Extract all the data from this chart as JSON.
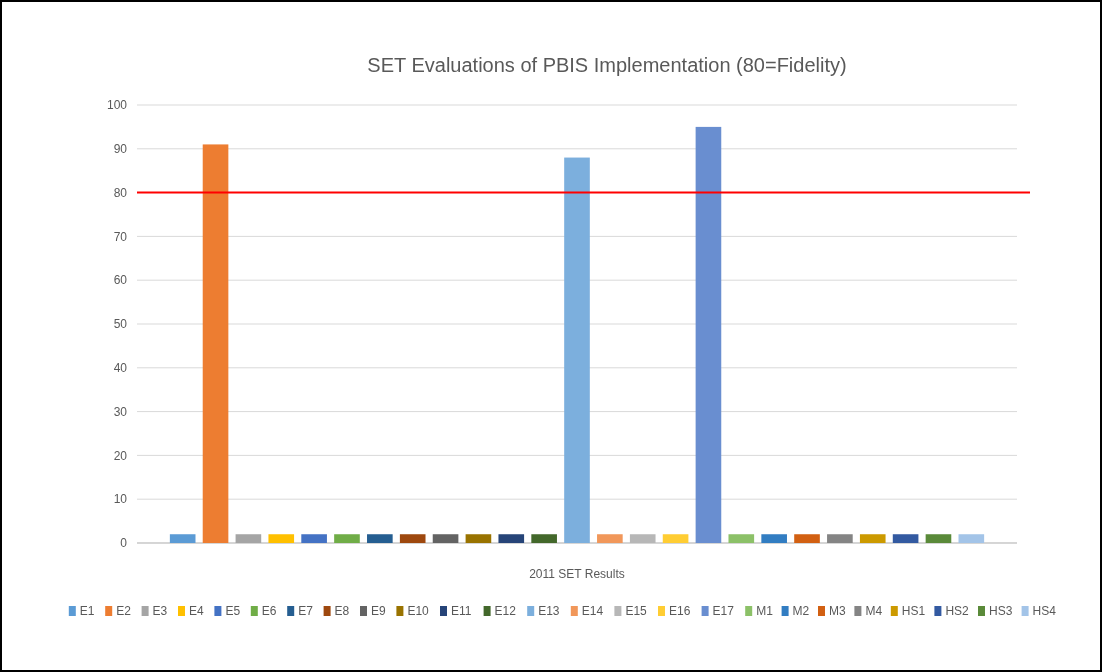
{
  "chart_data": {
    "type": "bar",
    "title": "SET Evaluations of PBIS Implementation (80=Fidelity)",
    "categories": [
      "2011 SET Results"
    ],
    "series": [
      {
        "name": "E1",
        "color": "#5b9bd5",
        "values": [
          2
        ]
      },
      {
        "name": "E2",
        "color": "#ed7d31",
        "values": [
          91
        ]
      },
      {
        "name": "E3",
        "color": "#a5a5a5",
        "values": [
          2
        ]
      },
      {
        "name": "E4",
        "color": "#ffc000",
        "values": [
          2
        ]
      },
      {
        "name": "E5",
        "color": "#4472c4",
        "values": [
          2
        ]
      },
      {
        "name": "E6",
        "color": "#70ad47",
        "values": [
          2
        ]
      },
      {
        "name": "E7",
        "color": "#255e91",
        "values": [
          2
        ]
      },
      {
        "name": "E8",
        "color": "#9e480e",
        "values": [
          2
        ]
      },
      {
        "name": "E9",
        "color": "#636363",
        "values": [
          2
        ]
      },
      {
        "name": "E10",
        "color": "#997300",
        "values": [
          2
        ]
      },
      {
        "name": "E11",
        "color": "#264478",
        "values": [
          2
        ]
      },
      {
        "name": "E12",
        "color": "#43682b",
        "values": [
          2
        ]
      },
      {
        "name": "E13",
        "color": "#7cafdd",
        "values": [
          88
        ]
      },
      {
        "name": "E14",
        "color": "#f1975a",
        "values": [
          2
        ]
      },
      {
        "name": "E15",
        "color": "#b7b7b7",
        "values": [
          2
        ]
      },
      {
        "name": "E16",
        "color": "#ffcd33",
        "values": [
          2
        ]
      },
      {
        "name": "E17",
        "color": "#698ed0",
        "values": [
          95
        ]
      },
      {
        "name": "M1",
        "color": "#8cc168",
        "values": [
          2
        ]
      },
      {
        "name": "M2",
        "color": "#327dc2",
        "values": [
          2
        ]
      },
      {
        "name": "M3",
        "color": "#d26012",
        "values": [
          2
        ]
      },
      {
        "name": "M4",
        "color": "#848484",
        "values": [
          2
        ]
      },
      {
        "name": "HS1",
        "color": "#cc9a00",
        "values": [
          2
        ]
      },
      {
        "name": "HS2",
        "color": "#335aa1",
        "values": [
          2
        ]
      },
      {
        "name": "HS3",
        "color": "#5a8a39",
        "values": [
          2
        ]
      },
      {
        "name": "HS4",
        "color": "#a3c4e8",
        "values": [
          2
        ]
      }
    ],
    "ylim": [
      0,
      100
    ],
    "yticks": [
      0,
      10,
      20,
      30,
      40,
      50,
      60,
      70,
      80,
      90,
      100
    ],
    "grid": "y",
    "legend": "bottom",
    "ref_lines": [
      {
        "axis": "y",
        "value": 80,
        "color": "#ff0000"
      }
    ]
  }
}
